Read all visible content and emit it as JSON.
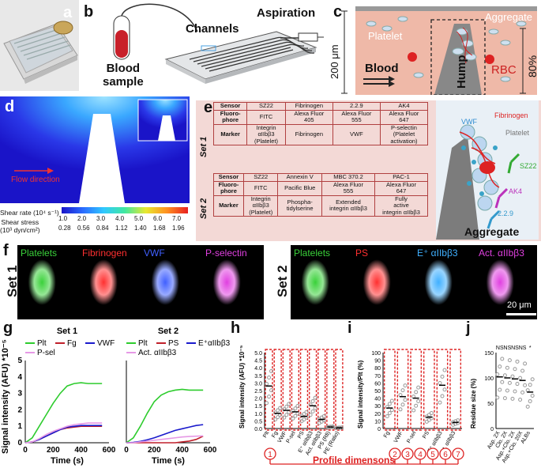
{
  "panel_letters": {
    "a": "a",
    "b": "b",
    "c": "c",
    "d": "d",
    "e": "e",
    "f": "f",
    "g": "g",
    "h": "h",
    "i": "i",
    "j": "j"
  },
  "b": {
    "blood_sample": "Blood\nsample",
    "channels": "Channels",
    "aspiration": "Aspiration"
  },
  "c": {
    "platelet": "Platelet",
    "aggregate": "Aggregate",
    "height": "200 μm",
    "blood": "Blood",
    "hump": "Hump",
    "rbc": "RBC",
    "percent": "80%"
  },
  "d": {
    "flow_direction": "Flow direction",
    "shear_rate_label": "Shear rate (10⁴ s⁻¹)",
    "shear_stress_label": "Shear stress\n(10³ dyn/cm²)",
    "rate_ticks": [
      "1.0",
      "2.0",
      "3.0",
      "4.0",
      "5.0",
      "6.0",
      "7.0"
    ],
    "stress_ticks": [
      "0.28",
      "0.56",
      "0.84",
      "1.12",
      "1.40",
      "1.68",
      "1.96"
    ]
  },
  "e": {
    "set1_label": "Set 1",
    "set2_label": "Set 2",
    "set1": [
      [
        "Sensor",
        "SZ22",
        "Fibrinogen",
        "2.2.9",
        "AK4"
      ],
      [
        "Fluoro-\nphore",
        "FITC",
        "Alexa Fluor\n405",
        "Alexa Fluor\n555",
        "Alexa Fluor\n647"
      ],
      [
        "Marker",
        "Integrin\nαIIbβ3\n(Platelet)",
        "Fibrinogen",
        "VWF",
        "P-selectin\n(Platelet\nactivation)"
      ]
    ],
    "set2": [
      [
        "Sensor",
        "SZ22",
        "Annexin V",
        "MBC 370.2",
        "PAC-1"
      ],
      [
        "Fluoro-\nphore",
        "FITC",
        "Pacific Blue",
        "Alexa Fluor\n555",
        "Alexa Fluor\n647"
      ],
      [
        "Marker",
        "Integrin\nαIIbβ3\n(Platelet)",
        "Phospha-\ntidylserine",
        "Extended\nintegrin αIIbβ3",
        "Fully\nactive\nintegrin αIIbβ3"
      ]
    ],
    "schematic": {
      "vwf": "VWF",
      "fibrinogen": "Fibrinogen",
      "platelet": "Platelet",
      "sz22": "SZ22",
      "ak4": "AK4",
      "clone": "2.2.9",
      "title": "Aggregate"
    }
  },
  "f": {
    "set1": "Set 1",
    "set2": "Set 2",
    "set1_channels": [
      {
        "name": "Platelets",
        "color": "#3ad13a"
      },
      {
        "name": "Fibrinogen",
        "color": "#ff3030"
      },
      {
        "name": "VWF",
        "color": "#4060ff"
      },
      {
        "name": "P-selectin",
        "color": "#e040e0"
      }
    ],
    "set2_channels": [
      {
        "name": "Platelets",
        "color": "#3ad13a"
      },
      {
        "name": "PS",
        "color": "#ff3030"
      },
      {
        "name": "E⁺ αIIbβ3",
        "color": "#40b0ff"
      },
      {
        "name": "Act. αIIbβ3",
        "color": "#e040e0"
      }
    ],
    "scale_bar": "20 μm"
  },
  "chart_data": [
    {
      "type": "line",
      "title": "Set 1",
      "xlabel": "Time (s)",
      "ylabel": "Signal intensity (AFU) *10⁻⁵",
      "xlim": [
        0,
        600
      ],
      "ylim": [
        0,
        5
      ],
      "x_ticks": [
        "0",
        "200",
        "400",
        "600"
      ],
      "y_ticks": [
        "0",
        "1",
        "2",
        "3",
        "4",
        "5"
      ],
      "series": [
        {
          "name": "Plt",
          "color": "#2ecc2e",
          "x": [
            0,
            50,
            100,
            150,
            200,
            250,
            300,
            350,
            400,
            450,
            500,
            550
          ],
          "values": [
            0,
            0.3,
            1.0,
            1.7,
            2.4,
            3.0,
            3.45,
            3.6,
            3.65,
            3.6,
            3.6,
            3.6
          ]
        },
        {
          "name": "Fg",
          "color": "#c0202b",
          "x": [
            0,
            50,
            100,
            150,
            200,
            250,
            300,
            350,
            400,
            450,
            500,
            550
          ],
          "values": [
            0,
            0.05,
            0.2,
            0.4,
            0.6,
            0.8,
            0.9,
            0.95,
            1.0,
            1.0,
            1.0,
            1.0
          ]
        },
        {
          "name": "VWF",
          "color": "#1a1acc",
          "x": [
            0,
            50,
            100,
            150,
            200,
            250,
            300,
            350,
            400,
            450,
            500,
            550
          ],
          "values": [
            0,
            0.05,
            0.2,
            0.4,
            0.6,
            0.8,
            0.95,
            1.0,
            1.05,
            1.05,
            1.05,
            1.05
          ]
        },
        {
          "name": "P-sel",
          "color": "#e699e6",
          "x": [
            0,
            50,
            100,
            150,
            200,
            250,
            300,
            350,
            400,
            450,
            500,
            550
          ],
          "values": [
            0,
            0.05,
            0.25,
            0.5,
            0.7,
            0.85,
            1.0,
            1.1,
            1.15,
            1.2,
            1.2,
            1.2
          ]
        }
      ]
    },
    {
      "type": "line",
      "title": "Set 2",
      "xlabel": "Time (s)",
      "ylabel": "",
      "xlim": [
        0,
        600
      ],
      "ylim": [
        0,
        5
      ],
      "x_ticks": [
        "0",
        "200",
        "400",
        "600"
      ],
      "y_ticks": [],
      "series": [
        {
          "name": "Plt",
          "color": "#2ecc2e",
          "x": [
            0,
            50,
            100,
            150,
            200,
            250,
            300,
            350,
            400,
            450,
            500,
            550
          ],
          "values": [
            0,
            0.3,
            1.0,
            1.8,
            2.5,
            2.9,
            3.1,
            3.2,
            3.25,
            3.2,
            3.2,
            3.2
          ]
        },
        {
          "name": "PS",
          "color": "#c0202b",
          "x": [
            0,
            50,
            100,
            150,
            200,
            250,
            300,
            350,
            400,
            450,
            500,
            550
          ],
          "values": [
            0,
            0,
            0,
            0,
            0,
            0,
            0,
            0,
            0.05,
            0.1,
            0.2,
            0.4
          ]
        },
        {
          "name": "E⁺αIIbβ3",
          "color": "#1a1acc",
          "x": [
            0,
            50,
            100,
            150,
            200,
            250,
            300,
            350,
            400,
            450,
            500,
            550
          ],
          "values": [
            0,
            0.02,
            0.08,
            0.18,
            0.3,
            0.45,
            0.6,
            0.75,
            0.85,
            0.95,
            1.05,
            1.1
          ]
        },
        {
          "name": "Act. αIIbβ3",
          "color": "#e699e6",
          "x": [
            0,
            50,
            100,
            150,
            200,
            250,
            300,
            350,
            400,
            450,
            500,
            550
          ],
          "values": [
            0,
            0,
            0.05,
            0.1,
            0.15,
            0.2,
            0.25,
            0.3,
            0.35,
            0.38,
            0.4,
            0.42
          ]
        }
      ]
    },
    {
      "type": "scatter",
      "ylabel": "Signal intensity (AFU) *10⁻⁵",
      "ylim": [
        0,
        5
      ],
      "y_ticks": [
        "0.0",
        "0.5",
        "1.0",
        "1.5",
        "2.0",
        "2.5",
        "3.0",
        "3.5",
        "4.0",
        "4.5",
        "5.0"
      ],
      "categories": [
        "Plt",
        "Fg",
        "VWF",
        "P-sel",
        "PS",
        "E⁺ αIIbβ3",
        "Act. αIIbβ3",
        "PS (Rfi)",
        "PE (Ratio)"
      ],
      "values": [
        2.8,
        1.0,
        1.2,
        1.1,
        0.8,
        1.5,
        0.6,
        0.1,
        0.05
      ]
    },
    {
      "type": "scatter",
      "ylabel": "Signal intensity/Plt (%)",
      "ylim": [
        0,
        100
      ],
      "y_ticks": [
        "0",
        "10",
        "20",
        "30",
        "40",
        "50",
        "60",
        "70",
        "80",
        "90",
        "100"
      ],
      "categories": [
        "Fg",
        "VWF",
        "P-sel",
        "PS",
        "E⁺ αIIbβ3",
        "Act. αIIbβ3"
      ],
      "values": [
        27,
        42,
        40,
        15,
        57,
        8
      ]
    },
    {
      "type": "scatter",
      "ylabel": "Residue size (%)",
      "ylim": [
        0,
        150
      ],
      "y_ticks": [
        "0",
        "50",
        "100",
        "150"
      ],
      "categories": [
        "Asp. 2X",
        "Clo. 2X",
        "Asp.+Clo. 2X",
        "Asp.+Clo. 20X",
        "ALBs"
      ],
      "values": [
        102,
        100,
        98,
        95,
        72
      ],
      "annotations": [
        "NS",
        "NS",
        "NS",
        "NS",
        "*"
      ]
    }
  ],
  "profile": {
    "label": "Profile dimensons",
    "numbers": [
      "1",
      "2",
      "3",
      "4",
      "5",
      "6",
      "7"
    ]
  }
}
